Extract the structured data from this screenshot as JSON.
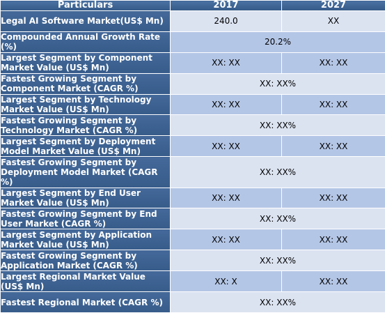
{
  "header": {
    "col1": "Particulars",
    "col2": "2017",
    "col3": "2027"
  },
  "rows": [
    {
      "label": "Legal AI Software Market(US$ Mn)",
      "v2017": "240.0",
      "v2027": "XX"
    },
    {
      "label": "Compounded Annual Growth Rate (%)",
      "merged": "20.2%"
    },
    {
      "label": "Largest Segment by Component Market Value (US$ Mn)",
      "v2017": "XX: XX",
      "v2027": "XX: XX"
    },
    {
      "label": "Fastest Growing Segment by Component Market (CAGR %)",
      "merged": "XX: XX%"
    },
    {
      "label": "Largest Segment by Technology Market Value (US$ Mn)",
      "v2017": "XX: XX",
      "v2027": "XX: XX"
    },
    {
      "label": "Fastest Growing Segment by Technology Market (CAGR %)",
      "merged": "XX: XX%"
    },
    {
      "label": "Largest Segment by Deployment Model Market Value (US$ Mn)",
      "v2017": "XX: XX",
      "v2027": "XX: XX"
    },
    {
      "label": "Fastest Growing Segment by Deployment Model Market (CAGR %)",
      "merged": "XX: XX%"
    },
    {
      "label": "Largest Segment by End User Market Value (US$ Mn)",
      "v2017": "XX: XX",
      "v2027": "XX: XX"
    },
    {
      "label": "Fastest Growing Segment by End User Market (CAGR %)",
      "merged": "XX: XX%"
    },
    {
      "label": "Largest Segment by Application Market Value (US$ Mn)",
      "v2017": "XX: XX",
      "v2027": "XX: XX"
    },
    {
      "label": "Fastest Growing Segment by Application Market (CAGR %)",
      "merged": "XX: XX%"
    },
    {
      "label": "Largest Regional Market Value (US$ Mn)",
      "v2017": "XX: X",
      "v2027": "XX: XX"
    },
    {
      "label": "Fastest Regional Market (CAGR %)",
      "merged": "XX: XX%"
    }
  ]
}
